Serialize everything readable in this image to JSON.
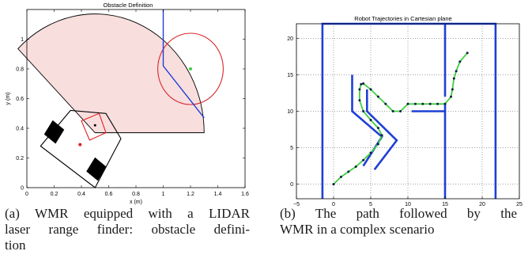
{
  "chart_data": [
    {
      "type": "diagram",
      "title": "Obstacle Definition",
      "xlabel": "x (m)",
      "ylabel": "y (m)",
      "xlim": [
        0,
        1.6
      ],
      "ylim": [
        0,
        1.2
      ],
      "xticks": [
        "0",
        "0.2",
        "0.4",
        "0.6",
        "0.8",
        "1",
        "1.2",
        "1.4",
        "1.6"
      ],
      "yticks": [
        "0",
        "0.2",
        "0.4",
        "0.6",
        "0.8",
        "1"
      ],
      "xtick_values": [
        0,
        0.2,
        0.4,
        0.6,
        0.8,
        1.0,
        1.2,
        1.4,
        1.6
      ],
      "ytick_values": [
        0,
        0.2,
        0.4,
        0.6,
        0.8,
        1.0
      ],
      "laser_sector": {
        "center": [
          0.5,
          0.37
        ],
        "radius": 0.8,
        "start_deg": 0,
        "end_deg": 135,
        "fill": "#f9dede",
        "stroke": "#000000"
      },
      "robot_body": [
        [
          0.1,
          0.28
        ],
        [
          0.32,
          0.52
        ],
        [
          0.58,
          0.5
        ],
        [
          0.69,
          0.33
        ],
        [
          0.5,
          0.0
        ]
      ],
      "wheels": [
        [
          [
            0.13,
            0.36
          ],
          [
            0.19,
            0.45
          ],
          [
            0.27,
            0.39
          ],
          [
            0.21,
            0.3
          ]
        ],
        [
          [
            0.44,
            0.11
          ],
          [
            0.5,
            0.2
          ],
          [
            0.58,
            0.14
          ],
          [
            0.52,
            0.05
          ]
        ]
      ],
      "lidar_square": [
        [
          0.4,
          0.45
        ],
        [
          0.53,
          0.5
        ],
        [
          0.58,
          0.37
        ],
        [
          0.46,
          0.32
        ]
      ],
      "lidar_point": [
        0.5,
        0.42
      ],
      "robot_center": [
        0.39,
        0.29
      ],
      "obstacle_circle": {
        "center": [
          1.2,
          0.8
        ],
        "radius": 0.24,
        "color": "#d9262a"
      },
      "obstacle_point": [
        1.2,
        0.8
      ],
      "wall_lines": [
        [
          [
            1.0,
            1.2
          ],
          [
            1.0,
            0.82
          ],
          [
            1.3,
            0.47
          ]
        ]
      ],
      "colors": {
        "wall": "#1f3fd6",
        "robot": "#000000",
        "marker": "#e02020",
        "target": "#40d040"
      }
    },
    {
      "type": "line",
      "title": "Robot Trajectories in Cartesian plane",
      "xlabel": "",
      "ylabel": "",
      "xlim": [
        -5,
        25
      ],
      "ylim": [
        -2,
        22
      ],
      "grid": true,
      "xticks": [
        "−5",
        "0",
        "5",
        "10",
        "15",
        "20",
        "25"
      ],
      "yticks": [
        "0",
        "5",
        "10",
        "15",
        "20"
      ],
      "xtick_values": [
        -5,
        0,
        5,
        10,
        15,
        20,
        25
      ],
      "ytick_values": [
        0,
        5,
        10,
        15,
        20
      ],
      "walls": [
        [
          [
            -1.5,
            -2
          ],
          [
            -1.5,
            22
          ],
          [
            21.8,
            22
          ],
          [
            21.8,
            -2
          ]
        ],
        [
          [
            15,
            -2
          ],
          [
            15,
            11
          ]
        ],
        [
          [
            10.5,
            10
          ],
          [
            15,
            10
          ]
        ],
        [
          [
            15,
            12
          ],
          [
            15,
            22
          ]
        ],
        [
          [
            2.5,
            15
          ],
          [
            2.5,
            10
          ],
          [
            6.5,
            6.5
          ],
          [
            4,
            2.5
          ]
        ],
        [
          [
            4.5,
            13
          ],
          [
            4.5,
            10
          ],
          [
            8.5,
            6
          ],
          [
            5.5,
            2
          ]
        ]
      ],
      "series": [
        {
          "x": [
            0,
            1,
            2,
            3,
            4,
            5,
            6,
            6.5,
            6,
            5,
            4,
            3.5,
            3.5,
            3.7,
            4,
            5,
            6,
            7,
            8,
            9,
            10,
            11,
            12,
            13,
            14,
            15,
            15.8,
            16,
            16.2,
            16.5,
            17,
            18
          ],
          "y": [
            0,
            1,
            1.7,
            2.4,
            3.3,
            4.3,
            5.5,
            6.7,
            7.7,
            8.8,
            10,
            11.5,
            13,
            13.7,
            13.8,
            13,
            12,
            11,
            10,
            10,
            11,
            11,
            11,
            11,
            11,
            11,
            12,
            13,
            14.5,
            15.5,
            16.8,
            18
          ]
        }
      ],
      "colors": {
        "wall": "#1f3fd6",
        "path": "#40d040",
        "dot": "#102040"
      }
    }
  ],
  "captions": {
    "a": [
      "(a) WMR equipped with a LIDAR",
      "laser range finder: obstacle defini-",
      "tion"
    ],
    "b": [
      "(b) The path followed by the",
      "WMR in a complex scenario"
    ]
  }
}
